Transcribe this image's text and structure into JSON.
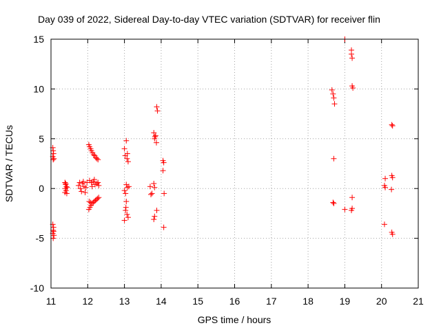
{
  "chart_data": {
    "type": "scatter",
    "title": "Day 039 of 2022, Sidereal Day-to-day VTEC variation (SDTVAR) for receiver flin",
    "xlabel": "GPS time / hours",
    "ylabel": "SDTVAR / TECUs",
    "xlim": [
      11,
      21
    ],
    "ylim": [
      -10,
      15
    ],
    "xticks": [
      "11",
      "12",
      "13",
      "14",
      "15",
      "16",
      "17",
      "18",
      "19",
      "20",
      "21"
    ],
    "yticks": [
      "-10",
      "-5",
      "0",
      "5",
      "10",
      "15"
    ],
    "grid": true,
    "marker": "+",
    "color": "#ff0000",
    "series": [
      {
        "name": "SDTVAR",
        "points": [
          [
            11.05,
            4.1
          ],
          [
            11.06,
            3.8
          ],
          [
            11.07,
            3.5
          ],
          [
            11.05,
            3.2
          ],
          [
            11.08,
            3.0
          ],
          [
            11.06,
            2.9
          ],
          [
            11.05,
            -3.6
          ],
          [
            11.07,
            -3.9
          ],
          [
            11.06,
            -4.2
          ],
          [
            11.05,
            -4.5
          ],
          [
            11.08,
            -4.7
          ],
          [
            11.06,
            -5.0
          ],
          [
            11.07,
            -4.3
          ],
          [
            11.38,
            0.6
          ],
          [
            11.4,
            0.4
          ],
          [
            11.42,
            0.2
          ],
          [
            11.39,
            0.0
          ],
          [
            11.41,
            -0.2
          ],
          [
            11.38,
            -0.4
          ],
          [
            11.43,
            -0.5
          ],
          [
            11.4,
            0.5
          ],
          [
            11.44,
            0.1
          ],
          [
            11.75,
            0.3
          ],
          [
            11.78,
            0.6
          ],
          [
            11.8,
            0.0
          ],
          [
            11.83,
            -0.3
          ],
          [
            11.86,
            0.5
          ],
          [
            11.88,
            0.7
          ],
          [
            11.9,
            0.2
          ],
          [
            11.93,
            -0.4
          ],
          [
            11.95,
            0.1
          ],
          [
            11.98,
            0.6
          ],
          [
            12.03,
            4.4
          ],
          [
            12.05,
            4.2
          ],
          [
            12.08,
            4.0
          ],
          [
            12.1,
            3.8
          ],
          [
            12.13,
            3.6
          ],
          [
            12.16,
            3.4
          ],
          [
            12.19,
            3.3
          ],
          [
            12.22,
            3.1
          ],
          [
            12.25,
            3.0
          ],
          [
            12.28,
            2.9
          ],
          [
            12.05,
            0.8
          ],
          [
            12.1,
            0.6
          ],
          [
            12.15,
            0.7
          ],
          [
            12.2,
            0.4
          ],
          [
            12.25,
            0.5
          ],
          [
            12.3,
            0.3
          ],
          [
            12.12,
            0.2
          ],
          [
            12.18,
            0.9
          ],
          [
            12.28,
            0.6
          ],
          [
            12.03,
            -2.1
          ],
          [
            12.06,
            -1.9
          ],
          [
            12.09,
            -1.7
          ],
          [
            12.12,
            -1.5
          ],
          [
            12.15,
            -1.4
          ],
          [
            12.18,
            -1.3
          ],
          [
            12.21,
            -1.2
          ],
          [
            12.24,
            -1.1
          ],
          [
            12.27,
            -1.0
          ],
          [
            12.3,
            -0.9
          ],
          [
            12.04,
            -1.3
          ],
          [
            12.08,
            -1.4
          ],
          [
            13.0,
            4.0
          ],
          [
            13.05,
            4.8
          ],
          [
            13.02,
            3.3
          ],
          [
            13.07,
            3.0
          ],
          [
            13.1,
            2.7
          ],
          [
            13.08,
            3.5
          ],
          [
            13.0,
            -0.2
          ],
          [
            13.05,
            0.4
          ],
          [
            13.08,
            0.1
          ],
          [
            13.03,
            -0.5
          ],
          [
            13.12,
            0.2
          ],
          [
            13.0,
            -3.2
          ],
          [
            13.03,
            -2.2
          ],
          [
            13.05,
            -1.3
          ],
          [
            13.07,
            -2.6
          ],
          [
            13.1,
            -2.9
          ],
          [
            13.04,
            -1.9
          ],
          [
            13.7,
            0.2
          ],
          [
            13.72,
            -0.6
          ],
          [
            13.75,
            -0.5
          ],
          [
            13.8,
            0.5
          ],
          [
            13.82,
            0.1
          ],
          [
            13.8,
            5.6
          ],
          [
            13.82,
            5.0
          ],
          [
            13.85,
            5.3
          ],
          [
            13.87,
            4.6
          ],
          [
            13.83,
            5.2
          ],
          [
            13.88,
            8.2
          ],
          [
            13.9,
            7.8
          ],
          [
            13.8,
            -3.1
          ],
          [
            13.82,
            -2.8
          ],
          [
            13.88,
            -2.2
          ],
          [
            14.05,
            2.8
          ],
          [
            14.07,
            2.6
          ],
          [
            14.05,
            1.8
          ],
          [
            14.08,
            -0.5
          ],
          [
            14.07,
            -3.9
          ],
          [
            18.65,
            9.9
          ],
          [
            18.68,
            9.5
          ],
          [
            18.7,
            9.1
          ],
          [
            18.72,
            8.5
          ],
          [
            18.7,
            3.0
          ],
          [
            18.68,
            -1.4
          ],
          [
            18.7,
            -1.5
          ],
          [
            19.0,
            15.0
          ],
          [
            19.0,
            -2.1
          ],
          [
            19.18,
            13.9
          ],
          [
            19.18,
            13.5
          ],
          [
            19.2,
            13.1
          ],
          [
            19.2,
            10.3
          ],
          [
            19.22,
            10.1
          ],
          [
            19.2,
            -0.9
          ],
          [
            19.2,
            -2.0
          ],
          [
            19.18,
            -2.2
          ],
          [
            20.1,
            1.0
          ],
          [
            20.08,
            0.3
          ],
          [
            20.1,
            0.1
          ],
          [
            20.08,
            -3.6
          ],
          [
            20.28,
            6.4
          ],
          [
            20.3,
            6.3
          ],
          [
            20.28,
            1.3
          ],
          [
            20.3,
            1.1
          ],
          [
            20.27,
            -0.1
          ],
          [
            20.28,
            -4.4
          ],
          [
            20.3,
            -4.6
          ]
        ]
      }
    ]
  }
}
